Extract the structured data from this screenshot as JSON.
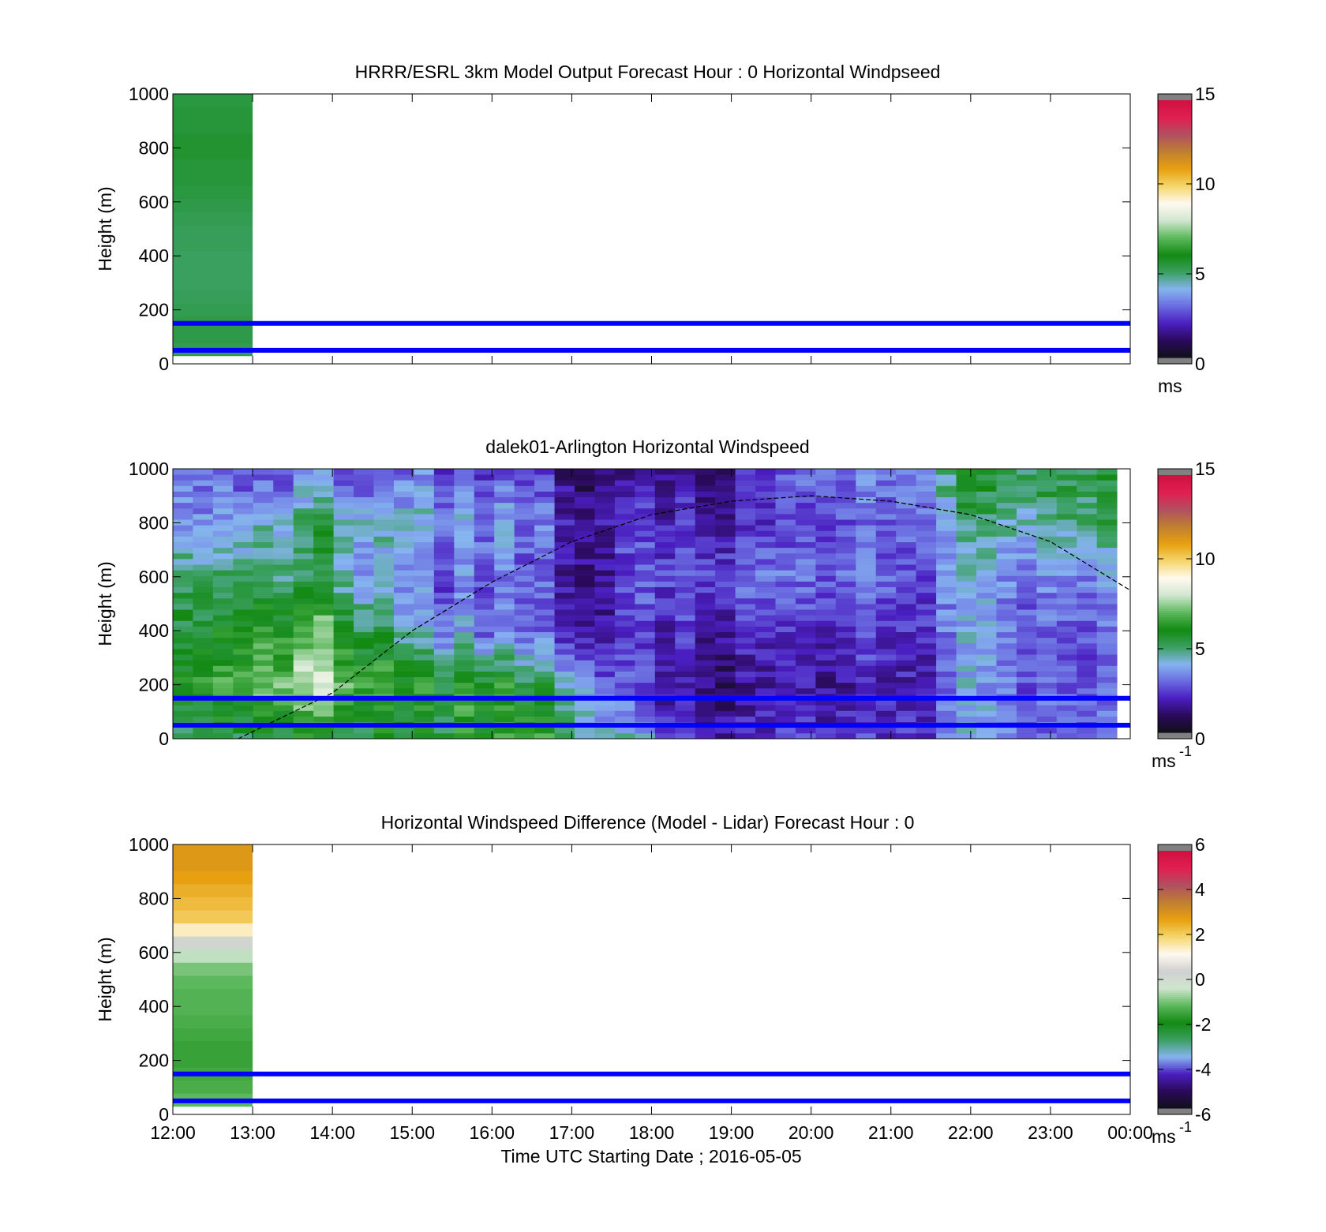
{
  "colors": {
    "speed_scale": [
      "#101018",
      "#2a0a5a",
      "#4a1ec0",
      "#6a6ae0",
      "#86b4f0",
      "#3aa060",
      "#138a13",
      "#5cb85c",
      "#cfe6cf",
      "#fffaf0",
      "#f5d76e",
      "#e8a010",
      "#c08030",
      "#b05060",
      "#e02050",
      "#d01040"
    ],
    "diff_scale": [
      "#101018",
      "#2a0a5a",
      "#4a1ec0",
      "#86b4f0",
      "#3aa060",
      "#138a13",
      "#5cb85c",
      "#cfe6cf",
      "#d0d0d0",
      "#fffaf0",
      "#f5d76e",
      "#e8a010",
      "#c08030",
      "#b05060",
      "#e02050",
      "#d01040"
    ],
    "level_line": "#0000ff",
    "colorbar_cap": "#808080",
    "sun_curve": "#000000"
  },
  "chart_data": [
    {
      "type": "heatmap",
      "title": "HRRR/ESRL 3km Model Output   Forecast Hour : 0 Horizontal Windpseed",
      "ylabel": "Height (m)",
      "xlim": [
        "12:00",
        "00:00"
      ],
      "ylim": [
        0,
        1000
      ],
      "x_ticks": [
        "12:00",
        "13:00",
        "14:00",
        "15:00",
        "16:00",
        "17:00",
        "18:00",
        "19:00",
        "20:00",
        "21:00",
        "22:00",
        "23:00",
        "00:00"
      ],
      "y_ticks": [
        0,
        200,
        400,
        600,
        800,
        1000
      ],
      "x_tick_labels_shown": false,
      "colorbar": {
        "range": [
          0,
          15
        ],
        "ticks": [
          0,
          5,
          10,
          15
        ],
        "unit_label": "ms",
        "unit_superscript": ""
      },
      "data_columns": [
        {
          "x_start": "12:00",
          "x_end": "13:00",
          "y_bottom": 30,
          "y_top": 1000,
          "values_bottom_to_top": [
            5.2,
            5.3,
            5.3,
            5.2,
            5.1,
            5.0,
            5.0,
            5.0,
            5.1,
            5.1,
            5.2,
            5.3,
            5.4,
            5.5,
            5.5,
            5.6,
            5.6,
            5.5,
            5.5,
            5.4
          ]
        }
      ],
      "level_lines_m": [
        50,
        150
      ]
    },
    {
      "type": "heatmap",
      "title": "dalek01-Arlington  Horizontal Windspeed",
      "ylabel": "Height (m)",
      "xlim": [
        "12:00",
        "00:00"
      ],
      "ylim": [
        0,
        1000
      ],
      "x_ticks": [
        "12:00",
        "13:00",
        "14:00",
        "15:00",
        "16:00",
        "17:00",
        "18:00",
        "19:00",
        "20:00",
        "21:00",
        "22:00",
        "23:00",
        "00:00"
      ],
      "y_ticks": [
        0,
        200,
        400,
        600,
        800,
        1000
      ],
      "x_tick_labels_shown": false,
      "colorbar": {
        "range": [
          0,
          15
        ],
        "ticks": [
          0,
          5,
          10,
          15
        ],
        "unit_label": "ms",
        "unit_superscript": "-1"
      },
      "time_range": [
        "12:00",
        "23:50"
      ],
      "height_range_m": [
        0,
        1000
      ],
      "columns_per_hour": 4,
      "column_profiles_hourly": [
        {
          "hour": "12:00",
          "speed_at_heights": {
            "0": 5.0,
            "200": 6.0,
            "400": 5.5,
            "600": 5.0,
            "800": 3.5,
            "1000": 3.3
          }
        },
        {
          "hour": "13:00",
          "speed_at_heights": {
            "0": 5.5,
            "200": 7.0,
            "400": 6.0,
            "600": 5.0,
            "800": 4.0,
            "1000": 2.5
          }
        },
        {
          "hour": "14:00",
          "speed_at_heights": {
            "0": 5.5,
            "200": 8.0,
            "400": 7.0,
            "600": 5.0,
            "800": 5.0,
            "1000": 3.0
          }
        },
        {
          "hour": "15:00",
          "speed_at_heights": {
            "0": 5.5,
            "200": 6.0,
            "400": 4.0,
            "600": 3.0,
            "800": 4.0,
            "1000": 3.0
          }
        },
        {
          "hour": "16:00",
          "speed_at_heights": {
            "0": 6.5,
            "200": 6.0,
            "400": 3.0,
            "600": 3.0,
            "800": 3.5,
            "1000": 2.5
          }
        },
        {
          "hour": "17:00",
          "speed_at_heights": {
            "0": 5.5,
            "200": 4.5,
            "400": 2.0,
            "600": 2.0,
            "800": 2.2,
            "1000": 1.5
          }
        },
        {
          "hour": "18:00",
          "speed_at_heights": {
            "0": 3.0,
            "200": 1.5,
            "400": 2.0,
            "600": 2.5,
            "800": 2.0,
            "1000": 1.2
          }
        },
        {
          "hour": "19:00",
          "speed_at_heights": {
            "0": 2.0,
            "200": 1.5,
            "400": 2.0,
            "600": 3.0,
            "800": 2.0,
            "1000": 2.0
          }
        },
        {
          "hour": "20:00",
          "speed_at_heights": {
            "0": 2.0,
            "200": 1.2,
            "400": 1.8,
            "600": 2.5,
            "800": 2.0,
            "1000": 2.5
          }
        },
        {
          "hour": "21:00",
          "speed_at_heights": {
            "0": 2.5,
            "200": 2.0,
            "400": 2.5,
            "600": 3.0,
            "800": 3.0,
            "1000": 3.5
          }
        },
        {
          "hour": "22:00",
          "speed_at_heights": {
            "0": 3.5,
            "200": 3.5,
            "400": 3.5,
            "600": 3.5,
            "800": 4.5,
            "1000": 5.5
          }
        },
        {
          "hour": "23:00",
          "speed_at_heights": {
            "0": 3.0,
            "200": 3.0,
            "400": 3.0,
            "600": 3.5,
            "800": 5.0,
            "1000": 5.5
          }
        }
      ],
      "curve_points": [
        {
          "x": "12:49",
          "y": 0
        },
        {
          "x": "14:00",
          "y": 170
        },
        {
          "x": "15:00",
          "y": 400
        },
        {
          "x": "16:00",
          "y": 580
        },
        {
          "x": "17:00",
          "y": 730
        },
        {
          "x": "18:00",
          "y": 830
        },
        {
          "x": "19:00",
          "y": 880
        },
        {
          "x": "20:00",
          "y": 900
        },
        {
          "x": "21:00",
          "y": 880
        },
        {
          "x": "22:00",
          "y": 830
        },
        {
          "x": "23:00",
          "y": 730
        },
        {
          "x": "00:00",
          "y": 550
        }
      ],
      "level_lines_m": [
        50,
        150
      ]
    },
    {
      "type": "heatmap",
      "title": "Horizontal Windspeed Difference (Model - Lidar) Forecast Hour : 0",
      "xlabel": "Time UTC  Starting Date ; 2016-05-05",
      "ylabel": "Height (m)",
      "xlim": [
        "12:00",
        "00:00"
      ],
      "ylim": [
        0,
        1000
      ],
      "x_ticks": [
        "12:00",
        "13:00",
        "14:00",
        "15:00",
        "16:00",
        "17:00",
        "18:00",
        "19:00",
        "20:00",
        "21:00",
        "22:00",
        "23:00",
        "00:00"
      ],
      "y_ticks": [
        0,
        200,
        400,
        600,
        800,
        1000
      ],
      "x_tick_labels_shown": true,
      "colorbar": {
        "range": [
          -6,
          6
        ],
        "ticks": [
          -6,
          -4,
          -2,
          0,
          2,
          4,
          6
        ],
        "unit_label": "ms",
        "unit_superscript": "-1"
      },
      "data_columns": [
        {
          "x_start": "12:00",
          "x_end": "13:00",
          "y_bottom": 30,
          "y_top": 1000,
          "values_bottom_to_top": [
            -1.2,
            -1.4,
            -1.5,
            -1.6,
            -1.6,
            -1.5,
            -1.4,
            -1.3,
            -1.3,
            -1.2,
            -1.0,
            -0.5,
            0.2,
            1.5,
            2.2,
            2.4,
            2.6,
            2.8,
            3.0,
            3.0
          ]
        }
      ],
      "level_lines_m": [
        50,
        150
      ]
    }
  ]
}
